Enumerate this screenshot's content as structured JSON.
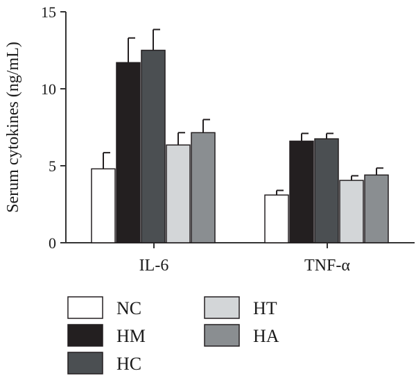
{
  "chart_data": {
    "type": "bar",
    "title": "",
    "xlabel": "",
    "ylabel": "Serum cytokines (ng/mL)",
    "ylim": [
      0,
      15
    ],
    "yticks": [
      0,
      5,
      10,
      15
    ],
    "categories": [
      "IL-6",
      "TNF-α"
    ],
    "series": [
      {
        "name": "NC",
        "values": [
          4.8,
          3.1
        ],
        "errors": [
          1.05,
          0.3
        ],
        "color": "#ffffff"
      },
      {
        "name": "HM",
        "values": [
          11.7,
          6.6
        ],
        "errors": [
          1.6,
          0.5
        ],
        "color": "#231f20"
      },
      {
        "name": "HC",
        "values": [
          12.5,
          6.75
        ],
        "errors": [
          1.35,
          0.35
        ],
        "color": "#4b4f52"
      },
      {
        "name": "HT",
        "values": [
          6.35,
          4.05
        ],
        "errors": [
          0.8,
          0.3
        ],
        "color": "#d3d6d8"
      },
      {
        "name": "HA",
        "values": [
          7.15,
          4.4
        ],
        "errors": [
          0.85,
          0.45
        ],
        "color": "#8a8e91"
      }
    ],
    "legend": {
      "placement": "bottom",
      "columns": [
        [
          "NC",
          "HM",
          "HC"
        ],
        [
          "HT",
          "HA"
        ]
      ]
    },
    "grid": false
  }
}
